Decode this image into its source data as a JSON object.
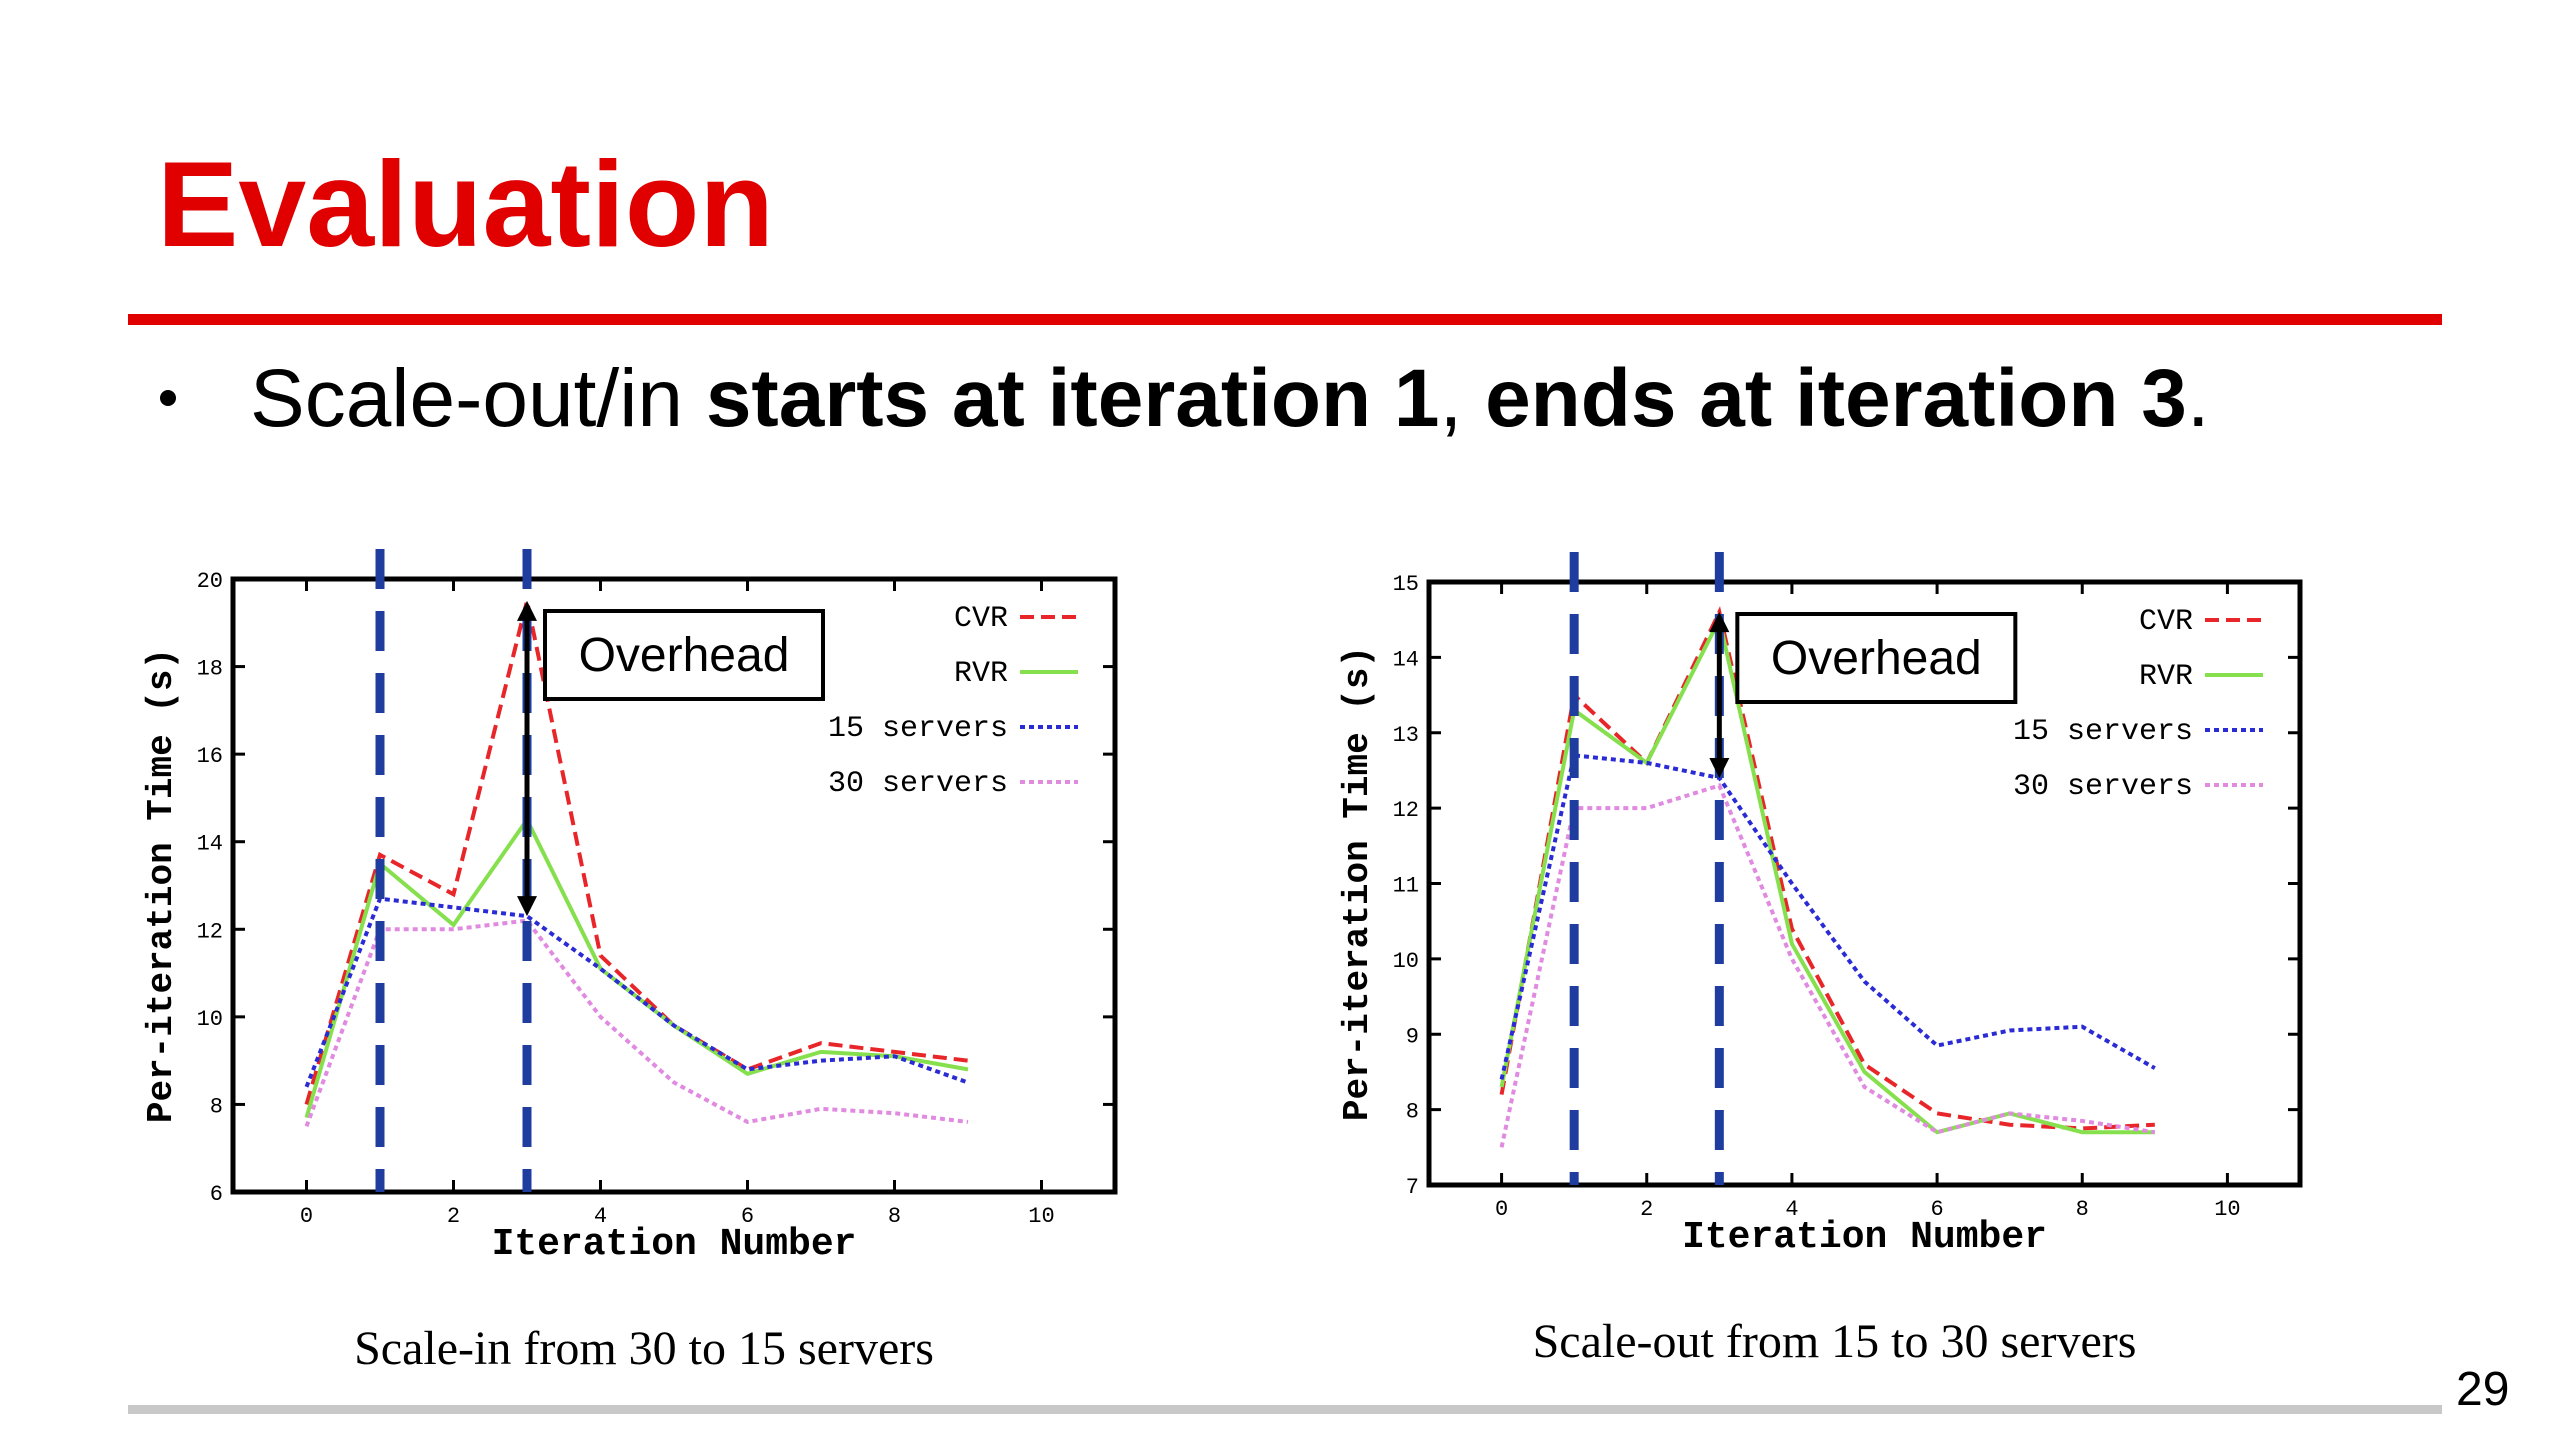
{
  "title": "Evaluation",
  "bullet": [
    {
      "text": "Scale-out/in ",
      "bold": false
    },
    {
      "text": "starts at iteration 1",
      "bold": true
    },
    {
      "text": ", ",
      "bold": false
    },
    {
      "text": "ends at iteration 3",
      "bold": true
    },
    {
      "text": ".",
      "bold": false
    }
  ],
  "page_number": "29",
  "chart_data": [
    {
      "type": "line",
      "caption": "Scale-in from 30 to 15 servers",
      "xlabel": "Iteration Number",
      "ylabel": "Per-iteration Time (s)",
      "x": [
        0,
        1,
        2,
        3,
        4,
        5,
        6,
        7,
        8,
        9
      ],
      "xlim": [
        -1,
        11
      ],
      "xticks": [
        0,
        2,
        4,
        6,
        8,
        10
      ],
      "ylim": [
        6,
        20
      ],
      "yticks": [
        6,
        8,
        10,
        12,
        14,
        16,
        18,
        20
      ],
      "grid": false,
      "legend": "top-right",
      "vlines": [
        1,
        3
      ],
      "annotation": "Overhead",
      "series": [
        {
          "name": "CVR",
          "color": "#e8262a",
          "style": "dashed",
          "values": [
            8.0,
            13.7,
            12.8,
            19.5,
            11.4,
            9.8,
            8.8,
            9.4,
            9.2,
            9.0
          ]
        },
        {
          "name": "RVR",
          "color": "#86e04e",
          "style": "solid",
          "values": [
            7.7,
            13.5,
            12.1,
            14.5,
            11.1,
            9.8,
            8.7,
            9.2,
            9.1,
            8.8
          ]
        },
        {
          "name": "15 servers",
          "color": "#2b2bd6",
          "style": "dotted",
          "values": [
            8.4,
            12.7,
            12.5,
            12.3,
            11.1,
            9.8,
            8.8,
            9.0,
            9.1,
            8.5
          ]
        },
        {
          "name": "30 servers",
          "color": "#e08ae0",
          "style": "dotted",
          "values": [
            7.5,
            12.0,
            12.0,
            12.2,
            10.0,
            8.5,
            7.6,
            7.9,
            7.8,
            7.6
          ]
        }
      ]
    },
    {
      "type": "line",
      "caption": "Scale-out from 15 to 30 servers",
      "xlabel": "Iteration Number",
      "ylabel": "Per-iteration Time (s)",
      "x": [
        0,
        1,
        2,
        3,
        4,
        5,
        6,
        7,
        8,
        9
      ],
      "xlim": [
        -1,
        11
      ],
      "xticks": [
        0,
        2,
        4,
        6,
        8,
        10
      ],
      "ylim": [
        7,
        15
      ],
      "yticks": [
        7,
        8,
        9,
        10,
        11,
        12,
        13,
        14,
        15
      ],
      "grid": false,
      "legend": "top-right",
      "vlines": [
        1,
        3
      ],
      "annotation": "Overhead",
      "series": [
        {
          "name": "CVR",
          "color": "#e8262a",
          "style": "dashed",
          "values": [
            8.2,
            13.5,
            12.6,
            14.6,
            10.4,
            8.6,
            7.95,
            7.8,
            7.75,
            7.8
          ]
        },
        {
          "name": "RVR",
          "color": "#86e04e",
          "style": "solid",
          "values": [
            8.3,
            13.3,
            12.6,
            14.5,
            10.2,
            8.5,
            7.7,
            7.95,
            7.7,
            7.7
          ]
        },
        {
          "name": "15 servers",
          "color": "#2b2bd6",
          "style": "dotted",
          "values": [
            8.4,
            12.7,
            12.6,
            12.4,
            11.0,
            9.7,
            8.85,
            9.05,
            9.1,
            8.55
          ]
        },
        {
          "name": "30 servers",
          "color": "#e08ae0",
          "style": "dotted",
          "values": [
            7.5,
            12.0,
            12.0,
            12.3,
            10.0,
            8.3,
            7.7,
            7.95,
            7.85,
            7.7
          ]
        }
      ]
    }
  ]
}
